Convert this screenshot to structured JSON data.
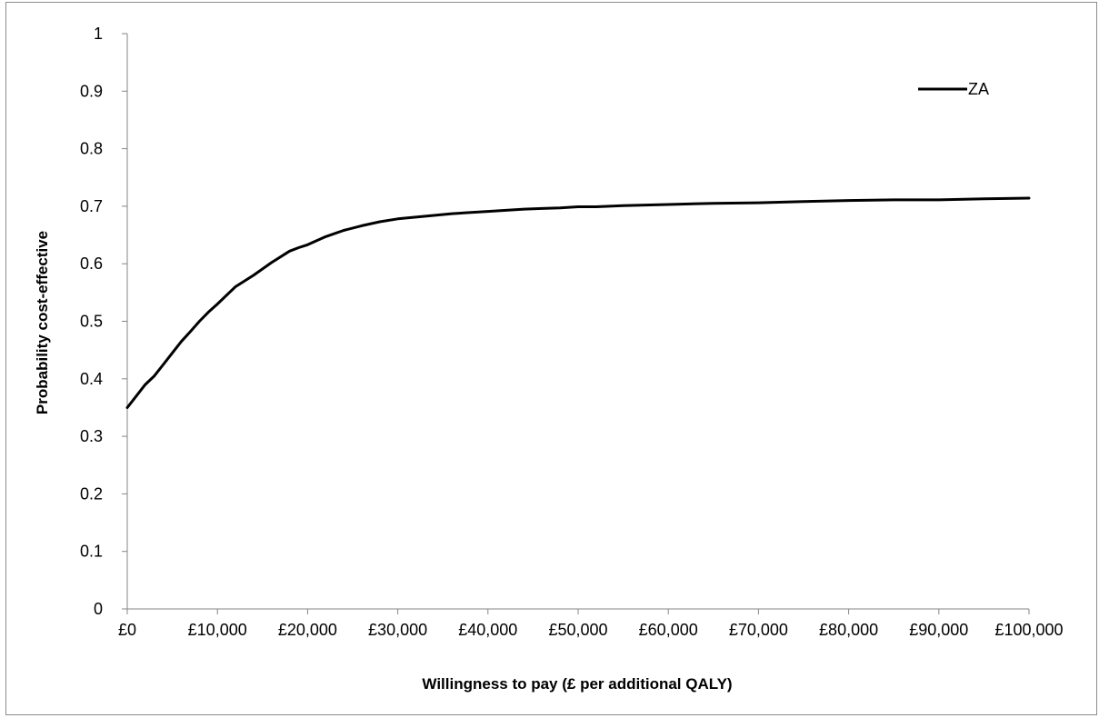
{
  "chart_data": {
    "type": "line",
    "title": "",
    "xlabel": "Willingness to pay (£ per additional QALY)",
    "ylabel": "Probability cost-effective",
    "xlim": [
      0,
      100000
    ],
    "ylim": [
      0,
      1
    ],
    "x_ticks": [
      0,
      10000,
      20000,
      30000,
      40000,
      50000,
      60000,
      70000,
      80000,
      90000,
      100000
    ],
    "x_tick_labels": [
      "£0",
      "£10,000",
      "£20,000",
      "£30,000",
      "£40,000",
      "£50,000",
      "£60,000",
      "£70,000",
      "£80,000",
      "£90,000",
      "£100,000"
    ],
    "y_ticks": [
      0,
      0.1,
      0.2,
      0.3,
      0.4,
      0.5,
      0.6,
      0.7,
      0.8,
      0.9,
      1
    ],
    "y_tick_labels": [
      "0",
      "0.1",
      "0.2",
      "0.3",
      "0.4",
      "0.5",
      "0.6",
      "0.7",
      "0.8",
      "0.9",
      "1"
    ],
    "grid": false,
    "legend_position": "top-right",
    "series": [
      {
        "name": "ZA",
        "color": "#000000",
        "x": [
          0,
          1000,
          2000,
          3000,
          4000,
          5000,
          6000,
          7000,
          8000,
          9000,
          10000,
          12000,
          14000,
          16000,
          18000,
          19000,
          20000,
          22000,
          24000,
          26000,
          28000,
          30000,
          32000,
          34000,
          36000,
          40000,
          44000,
          46000,
          48000,
          50000,
          52000,
          55000,
          60000,
          65000,
          70000,
          75000,
          80000,
          85000,
          90000,
          95000,
          100000
        ],
        "y": [
          0.35,
          0.37,
          0.39,
          0.405,
          0.425,
          0.445,
          0.465,
          0.482,
          0.5,
          0.516,
          0.53,
          0.56,
          0.58,
          0.602,
          0.622,
          0.628,
          0.633,
          0.647,
          0.658,
          0.666,
          0.673,
          0.678,
          0.681,
          0.684,
          0.687,
          0.691,
          0.695,
          0.696,
          0.697,
          0.699,
          0.699,
          0.701,
          0.703,
          0.705,
          0.706,
          0.708,
          0.71,
          0.711,
          0.711,
          0.713,
          0.714
        ]
      }
    ]
  }
}
